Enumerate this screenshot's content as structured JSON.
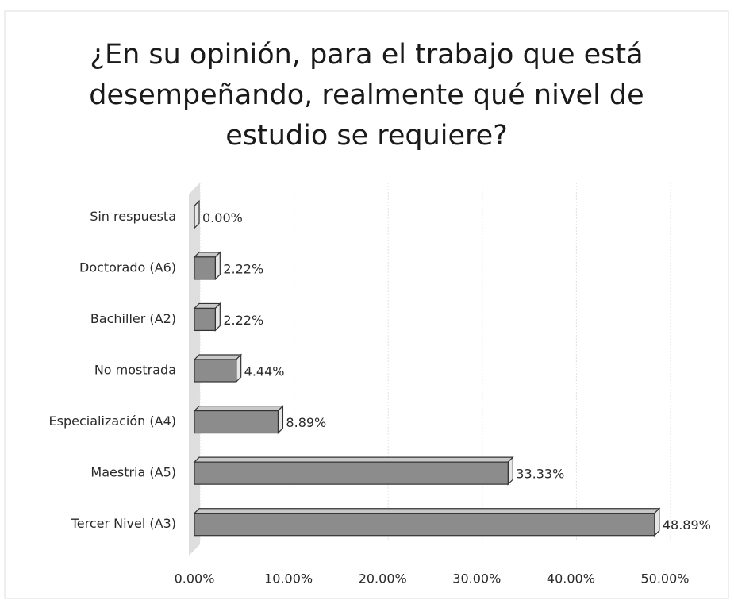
{
  "chart_data": {
    "type": "bar",
    "orientation": "horizontal",
    "title": "¿En su opinión, para el trabajo que está desempeñando, realmente qué nivel de estudio se requiere?",
    "categories": [
      "Sin respuesta",
      "Doctorado (A6)",
      "Bachiller (A2)",
      "No mostrada",
      "Especialización (A4)",
      "Maestria (A5)",
      "Tercer Nivel (A3)"
    ],
    "values": [
      0,
      2.22,
      2.22,
      4.44,
      8.89,
      33.33,
      48.89
    ],
    "value_labels": [
      "0.00%",
      "2.22%",
      "2.22%",
      "4.44%",
      "8.89%",
      "33.33%",
      "48.89%"
    ],
    "color": "#8c8c8c",
    "xlim": [
      0,
      50
    ],
    "xticks": [
      {
        "value": 0,
        "label": "0.00%"
      },
      {
        "value": 10,
        "label": "10.00%"
      },
      {
        "value": 20,
        "label": "20.00%"
      },
      {
        "value": 30,
        "label": "30.00%"
      },
      {
        "value": 40,
        "label": "40.00%"
      },
      {
        "value": 50,
        "label": "50.00%"
      }
    ],
    "grid": true
  }
}
